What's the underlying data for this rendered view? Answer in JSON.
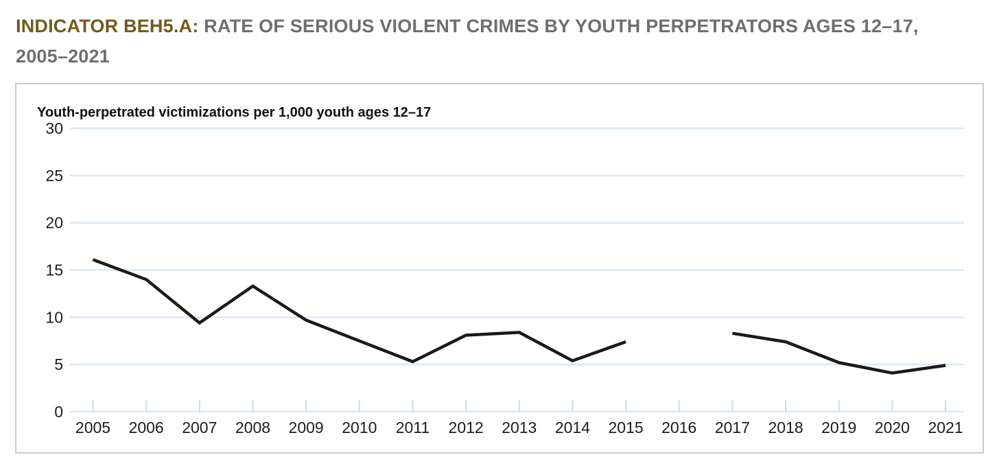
{
  "page": {
    "title_prefix": "INDICATOR BEH5.A:",
    "title_rest": " RATE OF SERIOUS VIOLENT CRIMES BY YOUTH PERPETRATORS AGES 12–17,",
    "title_line2": "2005–2021"
  },
  "colors": {
    "title_prefix": "#74591a",
    "title_rest": "#6d6e71",
    "gridline": "#dce8f2",
    "axis_tick": "#cfdde8",
    "data_line": "#1a1a1a",
    "card_border": "#cbcbcb",
    "tick_label": "#1c1c1c"
  },
  "chart_data": {
    "type": "line",
    "title": "Youth-perpetrated victimizations per 1,000 youth ages 12–17",
    "categories": [
      "2005",
      "2006",
      "2007",
      "2008",
      "2009",
      "2010",
      "2011",
      "2012",
      "2013",
      "2014",
      "2015",
      "2016",
      "2017",
      "2018",
      "2019",
      "2020",
      "2021"
    ],
    "series": [
      {
        "name": "Rate of serious violent crimes by youth perpetrators ages 12–17",
        "values": [
          16.1,
          14.0,
          9.4,
          13.3,
          9.7,
          7.5,
          5.3,
          8.1,
          8.4,
          5.4,
          7.4,
          null,
          8.3,
          7.4,
          5.2,
          4.1,
          4.9
        ]
      }
    ],
    "ylabel": "Youth-perpetrated victimizations per 1,000 youth ages 12–17",
    "xlabel": "",
    "ylim": [
      0,
      30
    ],
    "y_ticks": [
      0,
      5,
      10,
      15,
      20,
      25,
      30
    ],
    "grid": "horizontal",
    "legend": "none",
    "notes": "line broken at 2016 (no data point)"
  }
}
